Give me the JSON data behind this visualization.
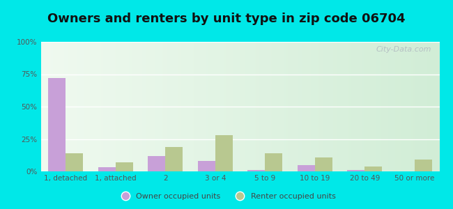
{
  "title": "Owners and renters by unit type in zip code 06704",
  "categories": [
    "1, detached",
    "1, attached",
    "2",
    "3 or 4",
    "5 to 9",
    "10 to 19",
    "20 to 49",
    "50 or more"
  ],
  "owner_values": [
    72,
    3,
    12,
    8,
    1,
    5,
    1,
    0
  ],
  "renter_values": [
    14,
    7,
    19,
    28,
    14,
    11,
    4,
    9
  ],
  "owner_color": "#c8a0d8",
  "renter_color": "#b8c890",
  "background_outer": "#00e8e8",
  "title_fontsize": 13,
  "legend_owner": "Owner occupied units",
  "legend_renter": "Renter occupied units",
  "ylim": [
    0,
    100
  ],
  "yticks": [
    0,
    25,
    50,
    75,
    100
  ],
  "ytick_labels": [
    "0%",
    "25%",
    "50%",
    "75%",
    "100%"
  ],
  "bar_width": 0.35,
  "watermark": "City-Data.com"
}
